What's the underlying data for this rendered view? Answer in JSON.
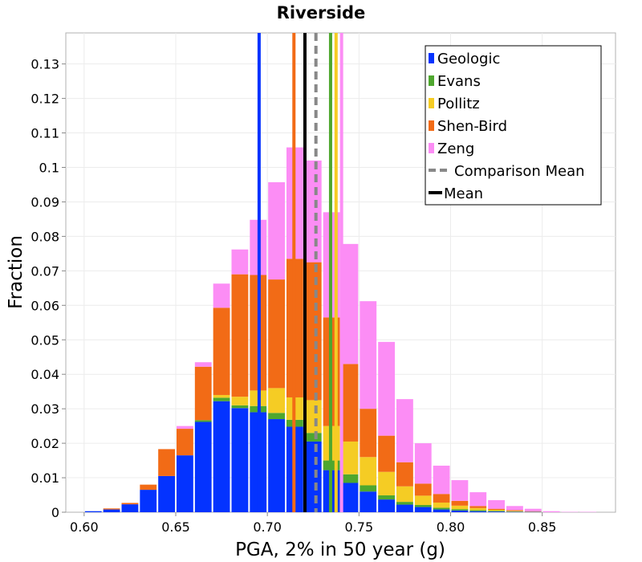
{
  "chart_data": {
    "type": "bar",
    "stacked": true,
    "title": "Riverside",
    "xlabel": "PGA, 2% in 50 year (g)",
    "ylabel": "Fraction",
    "xlim": [
      0.59,
      0.89
    ],
    "ylim": [
      0,
      0.139
    ],
    "bin_width": 0.01,
    "xticks": [
      "0.60",
      "0.65",
      "0.70",
      "0.75",
      "0.80",
      "0.85"
    ],
    "xtick_values": [
      0.6,
      0.65,
      0.7,
      0.75,
      0.8,
      0.85
    ],
    "yticks": [
      "0",
      "0.01",
      "0.02",
      "0.03",
      "0.04",
      "0.05",
      "0.06",
      "0.07",
      "0.08",
      "0.09",
      "0.1",
      "0.11",
      "0.12",
      "0.13"
    ],
    "ytick_values": [
      0,
      0.01,
      0.02,
      0.03,
      0.04,
      0.05,
      0.06,
      0.07,
      0.08,
      0.09,
      0.1,
      0.11,
      0.12,
      0.13
    ],
    "bin_centers": [
      0.605,
      0.615,
      0.625,
      0.635,
      0.645,
      0.655,
      0.665,
      0.675,
      0.685,
      0.695,
      0.705,
      0.715,
      0.725,
      0.735,
      0.745,
      0.755,
      0.765,
      0.775,
      0.785,
      0.795,
      0.805,
      0.815,
      0.825,
      0.835,
      0.845,
      0.855,
      0.865,
      0.875
    ],
    "series": [
      {
        "name": "Geologic",
        "color": "#0433ff",
        "values": [
          0.0003,
          0.0008,
          0.0023,
          0.0065,
          0.0105,
          0.0165,
          0.0262,
          0.0322,
          0.0302,
          0.029,
          0.027,
          0.0248,
          0.0205,
          0.0122,
          0.0085,
          0.006,
          0.0037,
          0.0022,
          0.0015,
          0.0008,
          0.0005,
          0.0003,
          0.0002,
          0.0001,
          0.0001,
          0.0,
          0.0,
          0.0
        ]
      },
      {
        "name": "Evans",
        "color": "#4ea72e",
        "values": [
          0.0,
          0.0,
          0.0,
          0.0,
          0.0,
          0.0,
          0.0005,
          0.001,
          0.0008,
          0.0018,
          0.0018,
          0.002,
          0.0025,
          0.0028,
          0.0025,
          0.0018,
          0.0012,
          0.0008,
          0.0006,
          0.0005,
          0.0004,
          0.0003,
          0.0002,
          0.0001,
          0.0,
          0.0,
          0.0,
          0.0
        ]
      },
      {
        "name": "Pollitz",
        "color": "#f5cc24",
        "values": [
          0.0,
          0.0,
          0.0,
          0.0,
          0.0,
          0.0,
          0.0,
          0.0008,
          0.0025,
          0.0045,
          0.0072,
          0.0065,
          0.0095,
          0.01,
          0.0095,
          0.0082,
          0.0068,
          0.0045,
          0.0027,
          0.0015,
          0.001,
          0.0006,
          0.0003,
          0.0002,
          0.0001,
          0.0,
          0.0,
          0.0
        ]
      },
      {
        "name": "Shen-Bird",
        "color": "#f26b16",
        "values": [
          0.0,
          0.0003,
          0.0004,
          0.0015,
          0.0078,
          0.0077,
          0.0155,
          0.0253,
          0.0355,
          0.0335,
          0.0315,
          0.0402,
          0.04,
          0.0315,
          0.0225,
          0.014,
          0.0105,
          0.007,
          0.0035,
          0.0025,
          0.0014,
          0.0006,
          0.0003,
          0.0002,
          0.0001,
          0.0,
          0.0,
          0.0
        ]
      },
      {
        "name": "Zeng",
        "color": "#fc8df5",
        "values": [
          0.0,
          0.0,
          0.0,
          0.0,
          0.0,
          0.0008,
          0.0013,
          0.007,
          0.0072,
          0.016,
          0.0282,
          0.0323,
          0.0295,
          0.0305,
          0.0348,
          0.0312,
          0.0272,
          0.0183,
          0.0117,
          0.0082,
          0.006,
          0.004,
          0.0025,
          0.0012,
          0.0007,
          0.0003,
          0.0001,
          0.0001
        ]
      }
    ],
    "vertical_lines": [
      {
        "name": "Geologic",
        "x": 0.6955,
        "color": "#0433ff",
        "style": "solid"
      },
      {
        "name": "Shen-Bird",
        "x": 0.7145,
        "color": "#f26b16",
        "style": "solid"
      },
      {
        "name": "Mean",
        "x": 0.7205,
        "color": "#000000",
        "style": "solid"
      },
      {
        "name": "Comparison Mean",
        "x": 0.7265,
        "color": "#888888",
        "style": "dashed"
      },
      {
        "name": "Evans",
        "x": 0.7345,
        "color": "#4ea72e",
        "style": "solid"
      },
      {
        "name": "Pollitz",
        "x": 0.7375,
        "color": "#f5cc24",
        "style": "solid"
      },
      {
        "name": "Zeng",
        "x": 0.7405,
        "color": "#fc8df5",
        "style": "solid"
      }
    ],
    "legend": {
      "position": "top-right",
      "entries": [
        {
          "label": "Geologic",
          "color": "#0433ff",
          "kind": "box"
        },
        {
          "label": "Evans",
          "color": "#4ea72e",
          "kind": "box"
        },
        {
          "label": "Pollitz",
          "color": "#f5cc24",
          "kind": "box"
        },
        {
          "label": "Shen-Bird",
          "color": "#f26b16",
          "kind": "box"
        },
        {
          "label": "Zeng",
          "color": "#fc8df5",
          "kind": "box"
        },
        {
          "label": "Comparison Mean",
          "color": "#888888",
          "kind": "dashed-line"
        },
        {
          "label": "Mean",
          "color": "#000000",
          "kind": "solid-line"
        }
      ]
    },
    "grid": true
  }
}
